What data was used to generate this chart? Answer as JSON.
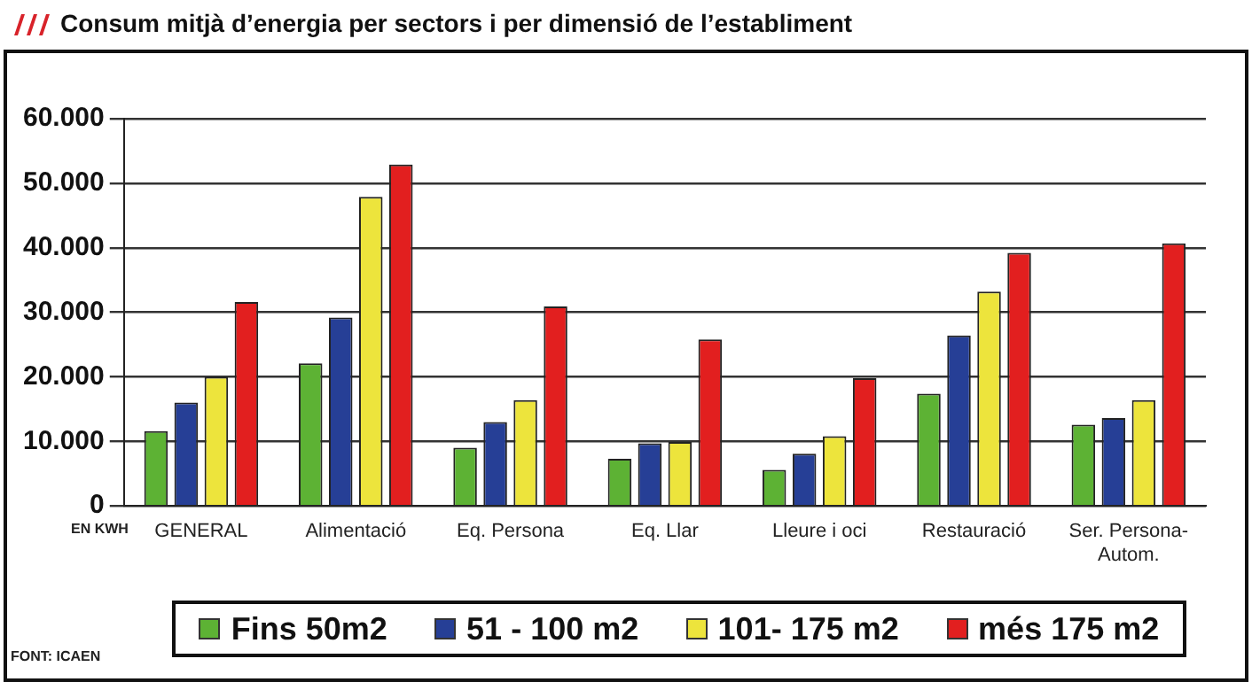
{
  "chart_data": {
    "type": "bar",
    "title": "Consum mitjà d’energia per sectors i per dimensió de l’establiment",
    "categories": [
      "GENERAL",
      "Alimentació",
      "Eq. Persona",
      "Eq. Llar",
      "Lleure i oci",
      "Restauració",
      "Ser. Persona-Autom."
    ],
    "series": [
      {
        "name": "Fins 50m2",
        "color": "#5db234",
        "values": [
          11600,
          22100,
          9000,
          7300,
          5600,
          17400,
          12600
        ]
      },
      {
        "name": "51 - 100 m2",
        "color": "#263f96",
        "values": [
          16000,
          29200,
          13000,
          9700,
          8100,
          26400,
          13600
        ]
      },
      {
        "name": "101- 175 m2",
        "color": "#ede43c",
        "values": [
          20000,
          47900,
          16400,
          9900,
          10800,
          33200,
          16400
        ]
      },
      {
        "name": "més 175 m2",
        "color": "#e21f1f",
        "values": [
          31600,
          52900,
          30900,
          25800,
          19800,
          39200,
          40700
        ]
      }
    ],
    "ylim": [
      0,
      60000
    ],
    "yticks": [
      0,
      {
        "value": 10000,
        "label": "10.000"
      },
      {
        "value": 20000,
        "label": "20.000"
      },
      {
        "value": 30000,
        "label": "30.000"
      },
      {
        "value": 40000,
        "label": "40.000"
      },
      {
        "value": 50000,
        "label": "50.000"
      },
      {
        "value": 60000,
        "label": "60.000"
      }
    ],
    "grid": "y",
    "legend": "bottom",
    "annotations": [
      "EN KWH",
      "FONT: ICAEN"
    ]
  }
}
